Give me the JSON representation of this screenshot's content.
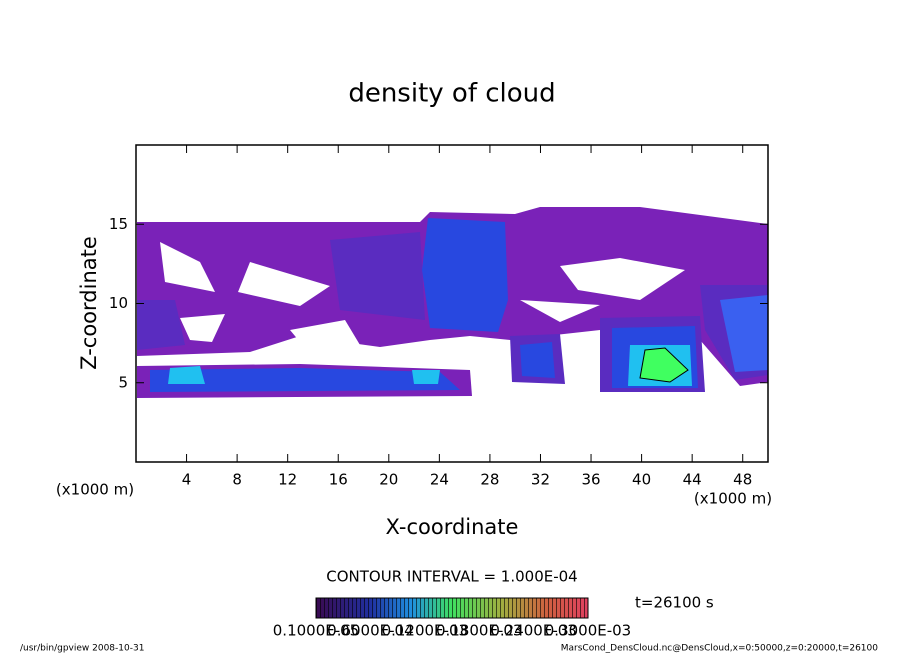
{
  "chart_data": {
    "type": "contour",
    "title": "density of cloud",
    "x_label": "X-coordinate",
    "y_label": "Z-coordinate",
    "x_unit_labels": [
      "(x1000 m)",
      "(x1000 m)"
    ],
    "xlim": [
      0,
      50
    ],
    "xticks": [
      4,
      8,
      12,
      16,
      20,
      24,
      28,
      32,
      36,
      40,
      44,
      48
    ],
    "ylim": [
      0,
      20
    ],
    "yticks": [
      5,
      10,
      15
    ],
    "contour_interval": "CONTOUR INTERVAL = 1.000E-04",
    "time_label": "t=26100 s",
    "colorbar_labels": [
      "0.1000E-05",
      "0.6000E-04",
      "0.1200E-03",
      "0.1800E-03",
      "0.2400E-03",
      "0.3000E-03"
    ],
    "footer_left": "/usr/bin/gpview   2008-10-31",
    "footer_right": "MarsCond_DensCloud.nc@DensCloud,x=0:50000,z=0:20000,t=26100"
  }
}
